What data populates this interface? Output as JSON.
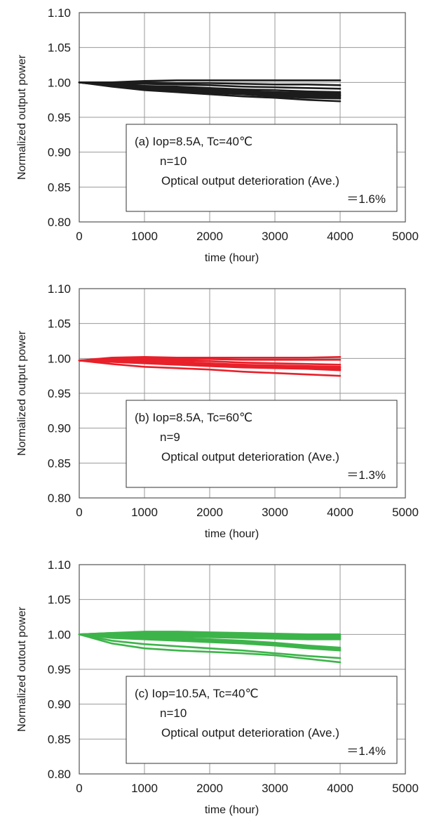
{
  "chart_data": [
    {
      "type": "line",
      "title": "",
      "xlabel": "time (hour)",
      "ylabel": "Normalized output power",
      "xlim": [
        0,
        5000
      ],
      "ylim": [
        0.8,
        1.1
      ],
      "xticks": [
        0,
        1000,
        2000,
        3000,
        4000,
        5000
      ],
      "yticks": [
        "0.80",
        "0.85",
        "0.90",
        "0.95",
        "1.00",
        "1.05",
        "1.10"
      ],
      "grid": true,
      "color": "#1c1c1c",
      "annotation": [
        "(a) Iop=8.5A, Tc=40℃",
        "n=10",
        "Optical output deterioration (Ave.)",
        "＝1.6%"
      ],
      "series": [
        {
          "x": [
            0,
            500,
            1000,
            1500,
            2000,
            2500,
            3000,
            3500,
            4000
          ],
          "values": [
            1.0,
            1.0,
            1.002,
            1.003,
            1.003,
            1.003,
            1.003,
            1.003,
            1.003
          ]
        },
        {
          "x": [
            0,
            500,
            1000,
            1500,
            2000,
            2500,
            3000,
            3500,
            4000
          ],
          "values": [
            1.0,
            0.999,
            1.0,
            0.999,
            0.999,
            0.998,
            0.997,
            0.997,
            0.996
          ]
        },
        {
          "x": [
            0,
            500,
            1000,
            1500,
            2000,
            2500,
            3000,
            3500,
            4000
          ],
          "values": [
            1.0,
            0.998,
            0.998,
            0.997,
            0.996,
            0.994,
            0.993,
            0.992,
            0.991
          ]
        },
        {
          "x": [
            0,
            500,
            1000,
            1500,
            2000,
            2500,
            3000,
            3500,
            4000
          ],
          "values": [
            1.0,
            0.997,
            0.995,
            0.994,
            0.992,
            0.99,
            0.989,
            0.987,
            0.986
          ]
        },
        {
          "x": [
            0,
            500,
            1000,
            1500,
            2000,
            2500,
            3000,
            3500,
            4000
          ],
          "values": [
            1.0,
            0.997,
            0.994,
            0.992,
            0.99,
            0.988,
            0.986,
            0.985,
            0.984
          ]
        },
        {
          "x": [
            0,
            500,
            1000,
            1500,
            2000,
            2500,
            3000,
            3500,
            4000
          ],
          "values": [
            1.0,
            0.996,
            0.993,
            0.991,
            0.989,
            0.987,
            0.985,
            0.983,
            0.982
          ]
        },
        {
          "x": [
            0,
            500,
            1000,
            1500,
            2000,
            2500,
            3000,
            3500,
            4000
          ],
          "values": [
            1.0,
            0.996,
            0.992,
            0.99,
            0.988,
            0.986,
            0.984,
            0.982,
            0.981
          ]
        },
        {
          "x": [
            0,
            500,
            1000,
            1500,
            2000,
            2500,
            3000,
            3500,
            4000
          ],
          "values": [
            1.0,
            0.995,
            0.991,
            0.989,
            0.986,
            0.984,
            0.982,
            0.98,
            0.979
          ]
        },
        {
          "x": [
            0,
            500,
            1000,
            1500,
            2000,
            2500,
            3000,
            3500,
            4000
          ],
          "values": [
            1.0,
            0.995,
            0.99,
            0.987,
            0.985,
            0.983,
            0.98,
            0.978,
            0.977
          ]
        },
        {
          "x": [
            0,
            500,
            1000,
            1500,
            2000,
            2500,
            3000,
            3500,
            4000
          ],
          "values": [
            1.0,
            0.994,
            0.989,
            0.986,
            0.983,
            0.98,
            0.978,
            0.975,
            0.973
          ]
        }
      ]
    },
    {
      "type": "line",
      "title": "",
      "xlabel": "time (hour)",
      "ylabel": "Normalized output power",
      "xlim": [
        0,
        5000
      ],
      "ylim": [
        0.8,
        1.1
      ],
      "xticks": [
        0,
        1000,
        2000,
        3000,
        4000,
        5000
      ],
      "yticks": [
        "0.80",
        "0.85",
        "0.90",
        "0.95",
        "1.00",
        "1.05",
        "1.10"
      ],
      "grid": true,
      "color": "#e8202a",
      "annotation": [
        "(b) Iop=8.5A, Tc=60℃",
        "n=9",
        "Optical output deterioration (Ave.)",
        "＝1.3%"
      ],
      "series": [
        {
          "x": [
            0,
            500,
            1000,
            1500,
            2000,
            2500,
            3000,
            3500,
            4000
          ],
          "values": [
            0.997,
            1.001,
            1.002,
            1.001,
            1.001,
            1.001,
            1.001,
            1.001,
            1.002
          ]
        },
        {
          "x": [
            0,
            500,
            1000,
            1500,
            2000,
            2500,
            3000,
            3500,
            4000
          ],
          "values": [
            0.997,
            0.999,
            1.0,
            0.999,
            0.999,
            0.998,
            0.998,
            0.998,
            0.998
          ]
        },
        {
          "x": [
            0,
            500,
            1000,
            1500,
            2000,
            2500,
            3000,
            3500,
            4000
          ],
          "values": [
            0.997,
            0.999,
            0.999,
            0.997,
            0.996,
            0.994,
            0.993,
            0.992,
            0.991
          ]
        },
        {
          "x": [
            0,
            500,
            1000,
            1500,
            2000,
            2500,
            3000,
            3500,
            4000
          ],
          "values": [
            0.997,
            0.998,
            0.997,
            0.995,
            0.993,
            0.991,
            0.99,
            0.989,
            0.988
          ]
        },
        {
          "x": [
            0,
            500,
            1000,
            1500,
            2000,
            2500,
            3000,
            3500,
            4000
          ],
          "values": [
            0.997,
            0.998,
            0.996,
            0.994,
            0.992,
            0.99,
            0.989,
            0.988,
            0.987
          ]
        },
        {
          "x": [
            0,
            500,
            1000,
            1500,
            2000,
            2500,
            3000,
            3500,
            4000
          ],
          "values": [
            0.997,
            0.997,
            0.995,
            0.993,
            0.991,
            0.989,
            0.988,
            0.987,
            0.985
          ]
        },
        {
          "x": [
            0,
            500,
            1000,
            1500,
            2000,
            2500,
            3000,
            3500,
            4000
          ],
          "values": [
            0.997,
            0.996,
            0.994,
            0.992,
            0.99,
            0.988,
            0.987,
            0.986,
            0.984
          ]
        },
        {
          "x": [
            0,
            500,
            1000,
            1500,
            2000,
            2500,
            3000,
            3500,
            4000
          ],
          "values": [
            0.997,
            0.995,
            0.993,
            0.991,
            0.989,
            0.987,
            0.986,
            0.985,
            0.983
          ]
        },
        {
          "x": [
            0,
            500,
            1000,
            1500,
            2000,
            2500,
            3000,
            3500,
            4000
          ],
          "values": [
            0.997,
            0.992,
            0.988,
            0.986,
            0.984,
            0.981,
            0.979,
            0.977,
            0.975
          ]
        }
      ]
    },
    {
      "type": "line",
      "title": "",
      "xlabel": "time (hour)",
      "ylabel": "Normalized outout power",
      "xlim": [
        0,
        5000
      ],
      "ylim": [
        0.8,
        1.1
      ],
      "xticks": [
        0,
        1000,
        2000,
        3000,
        4000,
        5000
      ],
      "yticks": [
        "0.80",
        "0.85",
        "0.90",
        "0.95",
        "1.00",
        "1.05",
        "1.10"
      ],
      "grid": true,
      "color": "#3db44a",
      "annotation": [
        "(c) Iop=10.5A, Tc=40℃",
        "n=10",
        "Optical output deterioration (Ave.)",
        "＝1.4%"
      ],
      "series": [
        {
          "x": [
            0,
            500,
            1000,
            1500,
            2000,
            2500,
            3000,
            3500,
            4000
          ],
          "values": [
            1.0,
            1.002,
            1.004,
            1.004,
            1.003,
            1.002,
            1.001,
            1.0,
            1.0
          ]
        },
        {
          "x": [
            0,
            500,
            1000,
            1500,
            2000,
            2500,
            3000,
            3500,
            4000
          ],
          "values": [
            1.0,
            1.002,
            1.003,
            1.003,
            1.002,
            1.001,
            1.0,
            0.999,
            0.999
          ]
        },
        {
          "x": [
            0,
            500,
            1000,
            1500,
            2000,
            2500,
            3000,
            3500,
            4000
          ],
          "values": [
            1.0,
            1.001,
            1.002,
            1.001,
            1.0,
            0.999,
            0.998,
            0.997,
            0.997
          ]
        },
        {
          "x": [
            0,
            500,
            1000,
            1500,
            2000,
            2500,
            3000,
            3500,
            4000
          ],
          "values": [
            1.0,
            1.0,
            1.0,
            0.999,
            0.998,
            0.997,
            0.996,
            0.995,
            0.995
          ]
        },
        {
          "x": [
            0,
            500,
            1000,
            1500,
            2000,
            2500,
            3000,
            3500,
            4000
          ],
          "values": [
            1.0,
            0.998,
            0.998,
            0.997,
            0.996,
            0.995,
            0.994,
            0.993,
            0.993
          ]
        },
        {
          "x": [
            0,
            500,
            1000,
            1500,
            2000,
            2500,
            3000,
            3500,
            4000
          ],
          "values": [
            1.0,
            0.997,
            0.996,
            0.995,
            0.993,
            0.991,
            0.988,
            0.984,
            0.981
          ]
        },
        {
          "x": [
            0,
            500,
            1000,
            1500,
            2000,
            2500,
            3000,
            3500,
            4000
          ],
          "values": [
            1.0,
            0.996,
            0.994,
            0.993,
            0.991,
            0.989,
            0.986,
            0.982,
            0.979
          ]
        },
        {
          "x": [
            0,
            500,
            1000,
            1500,
            2000,
            2500,
            3000,
            3500,
            4000
          ],
          "values": [
            1.0,
            0.995,
            0.993,
            0.991,
            0.989,
            0.987,
            0.984,
            0.98,
            0.977
          ]
        },
        {
          "x": [
            0,
            500,
            1000,
            1500,
            2000,
            2500,
            3000,
            3500,
            4000
          ],
          "values": [
            1.0,
            0.991,
            0.986,
            0.983,
            0.98,
            0.977,
            0.973,
            0.969,
            0.966
          ]
        },
        {
          "x": [
            0,
            500,
            1000,
            1500,
            2000,
            2500,
            3000,
            3500,
            4000
          ],
          "values": [
            1.0,
            0.987,
            0.98,
            0.977,
            0.975,
            0.973,
            0.97,
            0.965,
            0.96
          ]
        }
      ]
    }
  ]
}
